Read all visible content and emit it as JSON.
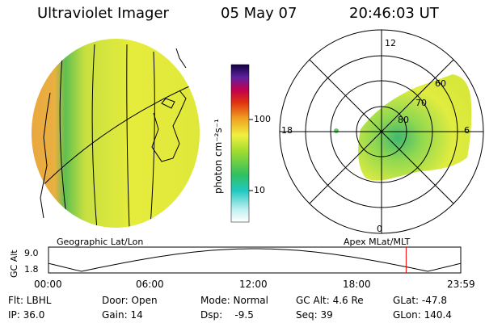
{
  "header": {
    "instrument": "Ultraviolet Imager",
    "date": "05 May 07",
    "time": "20:46:03 UT"
  },
  "colorbar": {
    "unit_label": "photon cm⁻²s⁻¹",
    "tick_labels": [
      "100",
      "10"
    ]
  },
  "panels": {
    "left_caption": "Geographic Lat/Lon",
    "right_caption": "Apex MLat/MLT"
  },
  "polar": {
    "mlt_labels": [
      "12",
      "18",
      "6",
      "0"
    ],
    "mlat_labels": [
      "60",
      "70",
      "80"
    ]
  },
  "altitude_plot": {
    "ylabel": "GC Alt",
    "y_ticks": [
      "9.0",
      "1.8"
    ],
    "x_ticks": [
      "00:00",
      "06:00",
      "12:00",
      "18:00",
      "23:59"
    ],
    "current_time_fraction": 0.8675
  },
  "info": {
    "flt": "Flt: LBHL",
    "ip": "IP: 36.0",
    "door": "Door: Open",
    "gain": "Gain: 14",
    "mode": "Mode: Normal",
    "dsp": "Dsp:    -9.5",
    "gcalt": "GC Alt: 4.6 Re",
    "seq": "Seq: 39",
    "glat": "GLat: -47.8",
    "glon": "GLon: 140.4"
  },
  "colors": {
    "earth_fill": "#e6ea3a",
    "limb_orange": "#f0b040",
    "limb_green": "#50c050",
    "polar_green": "#60c860",
    "marker_red": "#ff0000"
  }
}
